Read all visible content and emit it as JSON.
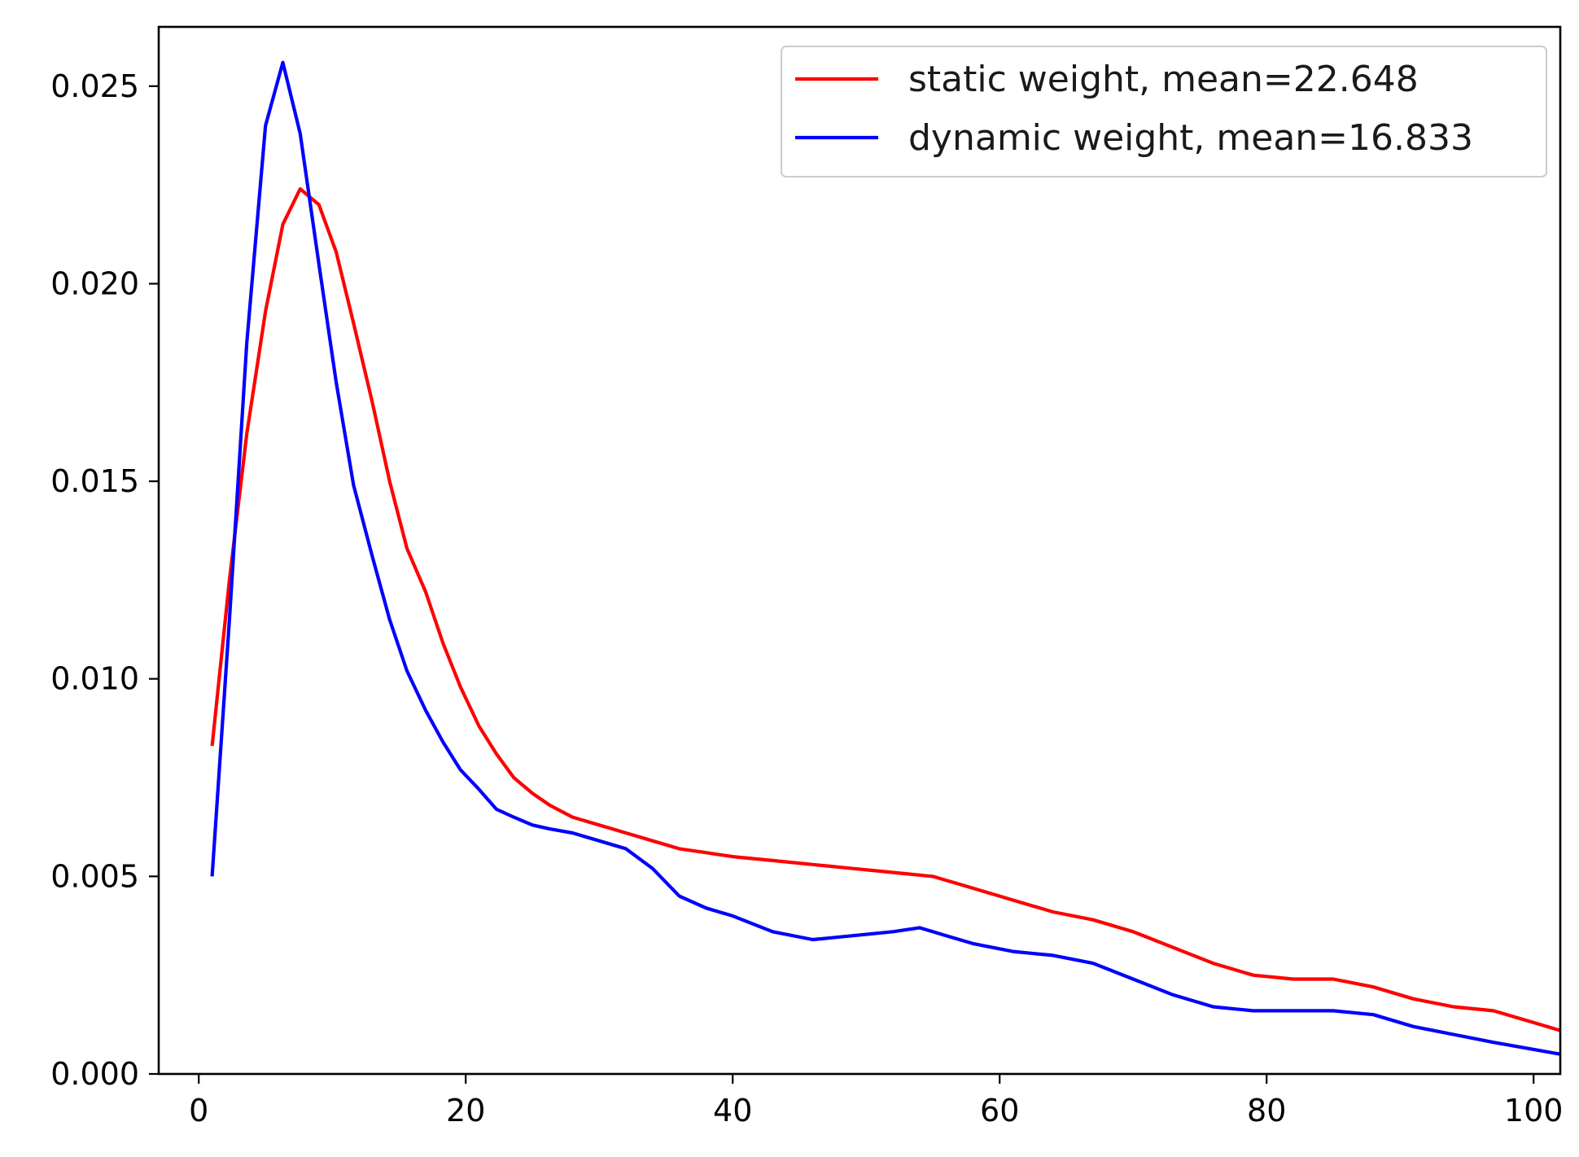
{
  "chart_data": {
    "type": "line",
    "title": "",
    "xlabel": "",
    "ylabel": "",
    "xlim": [
      -3,
      102
    ],
    "ylim": [
      0,
      0.0265
    ],
    "x_ticks": [
      0,
      20,
      40,
      60,
      80,
      100
    ],
    "x_tick_labels": [
      "0",
      "20",
      "40",
      "60",
      "80",
      "100"
    ],
    "y_ticks": [
      0.0,
      0.005,
      0.01,
      0.015,
      0.02,
      0.025
    ],
    "y_tick_labels": [
      "0.000",
      "0.005",
      "0.010",
      "0.015",
      "0.020",
      "0.025"
    ],
    "grid": false,
    "legend_position": "upper right",
    "series": [
      {
        "name": "static weight, mean=22.648",
        "color": "#ff0000",
        "x": [
          1,
          2.3,
          3.6,
          5,
          6.3,
          7.6,
          9,
          10.3,
          11.6,
          13,
          14.3,
          15.6,
          17,
          18.3,
          19.6,
          21,
          22.3,
          23.6,
          25,
          26.3,
          28,
          30,
          32,
          34,
          36,
          38,
          40,
          43,
          46,
          49,
          52,
          55,
          58,
          61,
          64,
          67,
          70,
          73,
          76,
          79,
          82,
          85,
          88,
          91,
          94,
          97,
          102
        ],
        "values": [
          0.0083,
          0.0125,
          0.0162,
          0.0193,
          0.0215,
          0.0224,
          0.022,
          0.0208,
          0.019,
          0.017,
          0.015,
          0.0133,
          0.0122,
          0.0109,
          0.0098,
          0.0088,
          0.0081,
          0.0075,
          0.0071,
          0.0068,
          0.0065,
          0.0063,
          0.0061,
          0.0059,
          0.0057,
          0.0056,
          0.0055,
          0.0054,
          0.0053,
          0.0052,
          0.0051,
          0.005,
          0.0047,
          0.0044,
          0.0041,
          0.0039,
          0.0036,
          0.0032,
          0.0028,
          0.0025,
          0.0024,
          0.0024,
          0.0022,
          0.0019,
          0.0017,
          0.0016,
          0.0011
        ]
      },
      {
        "name": "dynamic weight, mean=16.833",
        "color": "#0000ff",
        "x": [
          1,
          2.3,
          3.6,
          5,
          6.3,
          7.6,
          9,
          10.3,
          11.6,
          13,
          14.3,
          15.6,
          17,
          18.3,
          19.6,
          21,
          22.3,
          23.6,
          25,
          26.3,
          28,
          30,
          32,
          34,
          36,
          38,
          40,
          43,
          46,
          49,
          52,
          54,
          56,
          58,
          61,
          64,
          67,
          70,
          73,
          76,
          79,
          82,
          85,
          88,
          91,
          94,
          97,
          102
        ],
        "values": [
          0.005,
          0.0115,
          0.0185,
          0.024,
          0.0256,
          0.0238,
          0.0205,
          0.0175,
          0.0149,
          0.0131,
          0.0115,
          0.0102,
          0.0092,
          0.0084,
          0.0077,
          0.0072,
          0.0067,
          0.0065,
          0.0063,
          0.0062,
          0.0061,
          0.0059,
          0.0057,
          0.0052,
          0.0045,
          0.0042,
          0.004,
          0.0036,
          0.0034,
          0.0035,
          0.0036,
          0.0037,
          0.0035,
          0.0033,
          0.0031,
          0.003,
          0.0028,
          0.0024,
          0.002,
          0.0017,
          0.0016,
          0.0016,
          0.0016,
          0.0015,
          0.0012,
          0.001,
          0.0008,
          0.0005
        ]
      }
    ]
  }
}
